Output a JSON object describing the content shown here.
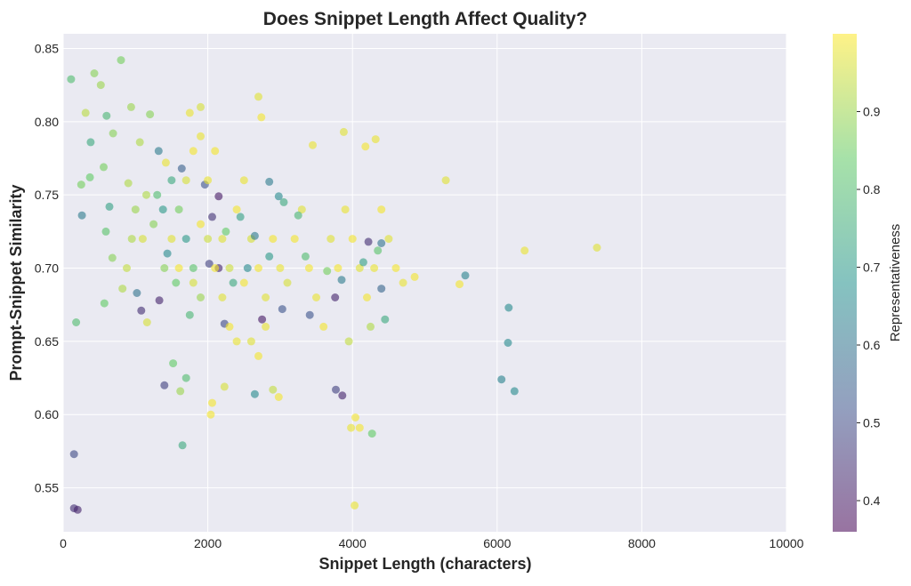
{
  "chart_data": {
    "type": "scatter",
    "title": "Does Snippet Length Affect Quality?",
    "xlabel": "Snippet Length (characters)",
    "ylabel": "Prompt-Snippet Similarity",
    "xlim": [
      0,
      10000
    ],
    "ylim": [
      0.52,
      0.86
    ],
    "x_ticks": [
      0,
      2000,
      4000,
      6000,
      8000,
      10000
    ],
    "y_ticks": [
      0.55,
      0.6,
      0.65,
      0.7,
      0.75,
      0.8,
      0.85
    ],
    "grid": true,
    "colormap": "viridis",
    "colorbar": {
      "label": "Representativeness",
      "range": [
        0.36,
        1.0
      ],
      "ticks": [
        0.4,
        0.5,
        0.6,
        0.7,
        0.8,
        0.9
      ]
    },
    "colors": {
      "background": "#eaeaf2",
      "grid": "#ffffff",
      "text": "#262626"
    },
    "points": [
      [
        110,
        0.829,
        0.8
      ],
      [
        430,
        0.833,
        0.88
      ],
      [
        520,
        0.825,
        0.9
      ],
      [
        800,
        0.842,
        0.86
      ],
      [
        310,
        0.806,
        0.93
      ],
      [
        600,
        0.804,
        0.78
      ],
      [
        940,
        0.81,
        0.9
      ],
      [
        1200,
        0.805,
        0.88
      ],
      [
        380,
        0.786,
        0.74
      ],
      [
        690,
        0.792,
        0.88
      ],
      [
        1060,
        0.786,
        0.92
      ],
      [
        560,
        0.769,
        0.86
      ],
      [
        250,
        0.757,
        0.86
      ],
      [
        370,
        0.762,
        0.84
      ],
      [
        640,
        0.742,
        0.72
      ],
      [
        900,
        0.758,
        0.92
      ],
      [
        260,
        0.736,
        0.62
      ],
      [
        590,
        0.725,
        0.82
      ],
      [
        680,
        0.707,
        0.88
      ],
      [
        820,
        0.686,
        0.92
      ],
      [
        1020,
        0.683,
        0.6
      ],
      [
        180,
        0.663,
        0.8
      ],
      [
        570,
        0.676,
        0.84
      ],
      [
        1080,
        0.671,
        0.44
      ],
      [
        1160,
        0.663,
        0.96
      ],
      [
        1320,
        0.78,
        0.62
      ],
      [
        1380,
        0.74,
        0.7
      ],
      [
        1420,
        0.772,
        0.98
      ],
      [
        1330,
        0.678,
        0.42
      ],
      [
        1400,
        0.62,
        0.48
      ],
      [
        1520,
        0.635,
        0.84
      ],
      [
        1620,
        0.616,
        0.9
      ],
      [
        1650,
        0.579,
        0.74
      ],
      [
        1700,
        0.625,
        0.8
      ],
      [
        1640,
        0.768,
        0.55
      ],
      [
        1750,
        0.806,
        0.98
      ],
      [
        1900,
        0.81,
        0.96
      ],
      [
        1960,
        0.757,
        0.52
      ],
      [
        2060,
        0.735,
        0.45
      ],
      [
        2150,
        0.749,
        0.4
      ],
      [
        2020,
        0.703,
        0.48
      ],
      [
        2150,
        0.7,
        0.42
      ],
      [
        2230,
        0.662,
        0.5
      ],
      [
        2060,
        0.608,
        0.99
      ],
      [
        2040,
        0.6,
        0.99
      ],
      [
        2230,
        0.619,
        0.96
      ],
      [
        2650,
        0.614,
        0.66
      ],
      [
        2900,
        0.617,
        0.94
      ],
      [
        2980,
        0.612,
        0.99
      ],
      [
        2750,
        0.665,
        0.4
      ],
      [
        2700,
        0.817,
        0.97
      ],
      [
        2740,
        0.803,
        0.99
      ],
      [
        2850,
        0.759,
        0.62
      ],
      [
        2980,
        0.749,
        0.66
      ],
      [
        3030,
        0.672,
        0.52
      ],
      [
        3410,
        0.668,
        0.52
      ],
      [
        3450,
        0.784,
        0.98
      ],
      [
        3880,
        0.793,
        0.97
      ],
      [
        4180,
        0.783,
        0.99
      ],
      [
        4320,
        0.788,
        0.98
      ],
      [
        3760,
        0.68,
        0.42
      ],
      [
        3770,
        0.617,
        0.48
      ],
      [
        3860,
        0.613,
        0.42
      ],
      [
        4220,
        0.718,
        0.44
      ],
      [
        4400,
        0.717,
        0.6
      ],
      [
        4400,
        0.686,
        0.56
      ],
      [
        4270,
        0.587,
        0.84
      ],
      [
        4040,
        0.598,
        0.99
      ],
      [
        3980,
        0.591,
        0.98
      ],
      [
        4100,
        0.591,
        0.99
      ],
      [
        4030,
        0.538,
        0.98
      ],
      [
        4860,
        0.694,
        0.99
      ],
      [
        5290,
        0.76,
        0.97
      ],
      [
        5480,
        0.689,
        0.99
      ],
      [
        5560,
        0.695,
        0.64
      ],
      [
        6380,
        0.712,
        0.98
      ],
      [
        7380,
        0.714,
        0.97
      ],
      [
        6160,
        0.673,
        0.66
      ],
      [
        6150,
        0.649,
        0.66
      ],
      [
        6060,
        0.624,
        0.64
      ],
      [
        6240,
        0.616,
        0.66
      ],
      [
        150,
        0.573,
        0.5
      ],
      [
        150,
        0.536,
        0.44
      ],
      [
        200,
        0.535,
        0.42
      ],
      [
        1500,
        0.72,
        0.97
      ],
      [
        1600,
        0.7,
        0.99
      ],
      [
        1800,
        0.69,
        0.96
      ],
      [
        1900,
        0.73,
        0.99
      ],
      [
        2000,
        0.76,
        0.98
      ],
      [
        2100,
        0.78,
        0.99
      ],
      [
        2200,
        0.72,
        0.97
      ],
      [
        2300,
        0.7,
        0.95
      ],
      [
        2400,
        0.74,
        0.99
      ],
      [
        2500,
        0.76,
        0.98
      ],
      [
        2600,
        0.72,
        0.96
      ],
      [
        2700,
        0.7,
        0.99
      ],
      [
        2800,
        0.68,
        0.97
      ],
      [
        2900,
        0.72,
        0.99
      ],
      [
        3000,
        0.7,
        0.98
      ],
      [
        3100,
        0.69,
        0.96
      ],
      [
        3200,
        0.72,
        0.99
      ],
      [
        3300,
        0.74,
        0.97
      ],
      [
        3400,
        0.7,
        0.99
      ],
      [
        3500,
        0.68,
        0.98
      ],
      [
        3600,
        0.66,
        0.99
      ],
      [
        3700,
        0.72,
        0.97
      ],
      [
        3800,
        0.7,
        0.99
      ],
      [
        3900,
        0.74,
        0.98
      ],
      [
        4000,
        0.72,
        0.99
      ],
      [
        4100,
        0.7,
        0.97
      ],
      [
        4200,
        0.68,
        0.99
      ],
      [
        4300,
        0.7,
        0.98
      ],
      [
        4400,
        0.74,
        0.99
      ],
      [
        4500,
        0.72,
        0.97
      ],
      [
        4600,
        0.7,
        0.99
      ],
      [
        4700,
        0.69,
        0.98
      ],
      [
        1700,
        0.76,
        0.96
      ],
      [
        1800,
        0.78,
        0.99
      ],
      [
        1900,
        0.79,
        0.98
      ],
      [
        2000,
        0.72,
        0.95
      ],
      [
        2100,
        0.7,
        0.99
      ],
      [
        2200,
        0.68,
        0.97
      ],
      [
        2300,
        0.66,
        0.99
      ],
      [
        2400,
        0.65,
        0.98
      ],
      [
        2500,
        0.69,
        0.99
      ],
      [
        2600,
        0.65,
        0.97
      ],
      [
        2700,
        0.64,
        0.99
      ],
      [
        2800,
        0.66,
        0.98
      ],
      [
        1300,
        0.75,
        0.8
      ],
      [
        1400,
        0.7,
        0.88
      ],
      [
        1500,
        0.76,
        0.74
      ],
      [
        1600,
        0.74,
        0.86
      ],
      [
        1700,
        0.72,
        0.7
      ],
      [
        1800,
        0.7,
        0.82
      ],
      [
        1900,
        0.68,
        0.9
      ],
      [
        1750,
        0.668,
        0.78
      ],
      [
        1560,
        0.69,
        0.84
      ],
      [
        1440,
        0.71,
        0.66
      ],
      [
        1250,
        0.73,
        0.88
      ],
      [
        1150,
        0.75,
        0.92
      ],
      [
        1000,
        0.74,
        0.9
      ],
      [
        950,
        0.72,
        0.92
      ],
      [
        880,
        0.7,
        0.94
      ],
      [
        1100,
        0.72,
        0.96
      ],
      [
        2450,
        0.735,
        0.72
      ],
      [
        2550,
        0.7,
        0.66
      ],
      [
        2350,
        0.69,
        0.74
      ],
      [
        2250,
        0.725,
        0.84
      ],
      [
        2650,
        0.722,
        0.62
      ],
      [
        2850,
        0.708,
        0.7
      ],
      [
        3050,
        0.745,
        0.74
      ],
      [
        3250,
        0.736,
        0.78
      ],
      [
        3350,
        0.708,
        0.8
      ],
      [
        3650,
        0.698,
        0.86
      ],
      [
        3850,
        0.692,
        0.62
      ],
      [
        4150,
        0.704,
        0.72
      ],
      [
        4350,
        0.712,
        0.82
      ],
      [
        4450,
        0.665,
        0.74
      ],
      [
        4250,
        0.66,
        0.92
      ],
      [
        3950,
        0.65,
        0.94
      ]
    ]
  }
}
